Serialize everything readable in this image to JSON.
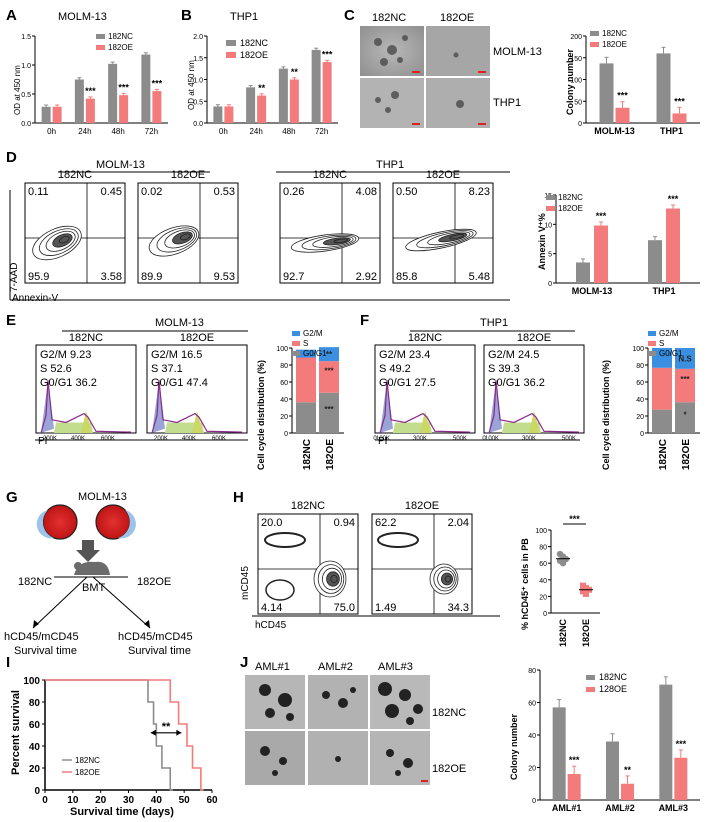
{
  "colors": {
    "nc": "#8c8c8c",
    "oe": "#f47b7b",
    "g2m": "#3b8fe0",
    "s": "#f47b7b",
    "g0g1": "#8c8c8c"
  },
  "panels": {
    "A": "A",
    "B": "B",
    "C": "C",
    "D": "D",
    "E": "E",
    "F": "F",
    "G": "G",
    "H": "H",
    "I": "I",
    "J": "J"
  },
  "legend": {
    "nc": "182NC",
    "oe": "182OE",
    "oe_j": "128OE",
    "g2m": "G2/M",
    "s": "S",
    "g0g1": "G0/G1"
  },
  "panelA": {
    "title": "MOLM-13",
    "ylabel": "OD at 450 nm",
    "times": [
      "0h",
      "24h",
      "48h",
      "72h"
    ],
    "yticks": [
      "0.0",
      "0.5",
      "1.0",
      "1.5"
    ],
    "nc": [
      0.28,
      0.75,
      1.02,
      1.18
    ],
    "oe": [
      0.28,
      0.42,
      0.48,
      0.55
    ],
    "sig": [
      "",
      "***",
      "***",
      "***"
    ]
  },
  "panelB": {
    "title": "THP1",
    "ylabel": "OD at 450 nm",
    "times": [
      "0h",
      "24h",
      "48h",
      "72h"
    ],
    "yticks": [
      "0.0",
      "0.5",
      "1.0",
      "1.5",
      "2.0"
    ],
    "nc": [
      0.38,
      0.82,
      1.25,
      1.68
    ],
    "oe": [
      0.38,
      0.63,
      1.0,
      1.4
    ],
    "sig": [
      "",
      "**",
      "**",
      "***"
    ]
  },
  "panelC": {
    "col_nc": "182NC",
    "col_oe": "182OE",
    "row1": "MOLM-13",
    "row2": "THP1",
    "ylabel": "Colony number",
    "groups": [
      "MOLM-13",
      "THP1"
    ],
    "yticks": [
      "0",
      "50",
      "100",
      "150",
      "200"
    ],
    "nc": [
      137,
      160
    ],
    "oe": [
      35,
      22
    ],
    "sig": [
      "***",
      "***"
    ]
  },
  "panelD": {
    "cell1": "MOLM-13",
    "cell2": "THP1",
    "ylab": "7-AAD",
    "xlab": "Annexin-V",
    "plots": [
      {
        "label": "182NC",
        "ul": "0.11",
        "ur": "0.45",
        "ll": "95.9",
        "lr": "3.58"
      },
      {
        "label": "182OE",
        "ul": "0.02",
        "ur": "0.53",
        "ll": "89.9",
        "lr": "9.53"
      },
      {
        "label": "182NC",
        "ul": "0.26",
        "ur": "4.08",
        "ll": "92.7",
        "lr": "2.92"
      },
      {
        "label": "182OE",
        "ul": "0.50",
        "ur": "8.23",
        "ll": "85.8",
        "lr": "5.48"
      }
    ],
    "bar": {
      "ylabel": "Annexin V⁺%",
      "groups": [
        "MOLM-13",
        "THP1"
      ],
      "yticks": [
        "0",
        "5",
        "10",
        "15"
      ],
      "nc": [
        3.5,
        7.3
      ],
      "oe": [
        9.8,
        12.7
      ],
      "sig": [
        "***",
        "***"
      ]
    }
  },
  "panelE": {
    "cell": "MOLM-13",
    "xlab": "PI",
    "plots": [
      {
        "label": "182NC",
        "g2m": "G2/M 9.23",
        "s": "S      52.6",
        "g0": "G0/G1 36.2"
      },
      {
        "label": "182OE",
        "g2m": "G2/M 16.5",
        "s": "S      37.1",
        "g0": "G0/G1 47.4"
      }
    ],
    "xticks": [
      "0",
      "200K",
      "400K",
      "600K"
    ],
    "bar": {
      "ylabel": "Cell cycle distribution (%)",
      "groups": [
        "182NC",
        "182OE"
      ],
      "yticks": [
        "0",
        "20",
        "40",
        "60",
        "80",
        "100"
      ],
      "g0g1": [
        36.2,
        47.4
      ],
      "s": [
        52.6,
        37.1
      ],
      "g2m": [
        9.23,
        16.5
      ],
      "sig": [
        "**",
        "***",
        "***"
      ]
    }
  },
  "panelF": {
    "cell": "THP1",
    "xlab": "PI",
    "plots": [
      {
        "label": "182NC",
        "g2m": "G2/M 23.4",
        "s": "S      49.2",
        "g0": "G0/G1 27.5"
      },
      {
        "label": "182OE",
        "g2m": "G2/M 24.5",
        "s": "S      39.3",
        "g0": "G0/G1 36.2"
      }
    ],
    "xticks": [
      "0",
      "100K",
      "300K",
      "500K"
    ],
    "xticks2": [
      "100K",
      "300K",
      "500K"
    ],
    "bar": {
      "ylabel": "Cell cycle distribution (%)",
      "groups": [
        "182NC",
        "182OE"
      ],
      "yticks": [
        "0",
        "20",
        "40",
        "60",
        "80",
        "100"
      ],
      "g0g1": [
        27.5,
        36.2
      ],
      "s": [
        49.2,
        39.3
      ],
      "g2m": [
        23.4,
        24.5
      ],
      "sig": [
        "N.S",
        "***",
        "*"
      ]
    }
  },
  "panelG": {
    "cell": "MOLM-13",
    "bmt": "BMT",
    "left": "182NC",
    "right": "182OE",
    "out1": "hCD45/mCD45",
    "out2": "Survival  time"
  },
  "panelH": {
    "ylab": "mCD45",
    "xlab": "hCD45",
    "plots": [
      {
        "label": "182NC",
        "ul": "20.0",
        "ur": "0.94",
        "ll": "4.14",
        "lr": "75.0"
      },
      {
        "label": "182OE",
        "ul": "62.2",
        "ur": "2.04",
        "ll": "1.49",
        "lr": "34.3"
      }
    ],
    "dot": {
      "ylabel": "% hCD45⁺ cells in PB",
      "groups": [
        "182NC",
        "182OE"
      ],
      "yticks": [
        "0",
        "20",
        "40",
        "60",
        "80",
        "100"
      ],
      "nc": [
        71,
        68,
        65,
        63,
        60
      ],
      "oe": [
        33,
        30,
        28,
        26,
        23
      ],
      "sig": "***"
    }
  },
  "panelI": {
    "ylabel": "Percent survival",
    "xlabel": "Survival time (days)",
    "xticks": [
      "0",
      "10",
      "20",
      "30",
      "40",
      "50",
      "60"
    ],
    "yticks": [
      "0",
      "20",
      "40",
      "60",
      "80",
      "100"
    ],
    "sig": "**",
    "nc_steps": [
      [
        0,
        100
      ],
      [
        37,
        100
      ],
      [
        37,
        80
      ],
      [
        39,
        80
      ],
      [
        39,
        60
      ],
      [
        40,
        60
      ],
      [
        40,
        40
      ],
      [
        42,
        40
      ],
      [
        42,
        20
      ],
      [
        45,
        20
      ],
      [
        45,
        0
      ],
      [
        46,
        0
      ]
    ],
    "oe_steps": [
      [
        0,
        100
      ],
      [
        45,
        100
      ],
      [
        45,
        80
      ],
      [
        48,
        80
      ],
      [
        48,
        60
      ],
      [
        51,
        60
      ],
      [
        51,
        40
      ],
      [
        53,
        40
      ],
      [
        53,
        20
      ],
      [
        56,
        20
      ],
      [
        56,
        0
      ],
      [
        57,
        0
      ]
    ],
    "legend_nc": "182NC",
    "legend_oe": "182OE"
  },
  "panelJ": {
    "cols": [
      "AML#1",
      "AML#2",
      "AML#3"
    ],
    "row1": "182NC",
    "row2": "182OE",
    "ylabel": "Colony number",
    "groups": [
      "AML#1",
      "AML#2",
      "AML#3"
    ],
    "yticks": [
      "0",
      "20",
      "40",
      "60",
      "80"
    ],
    "nc": [
      57,
      36,
      71
    ],
    "oe": [
      16,
      10,
      26
    ],
    "sig": [
      "***",
      "**",
      "***"
    ]
  }
}
